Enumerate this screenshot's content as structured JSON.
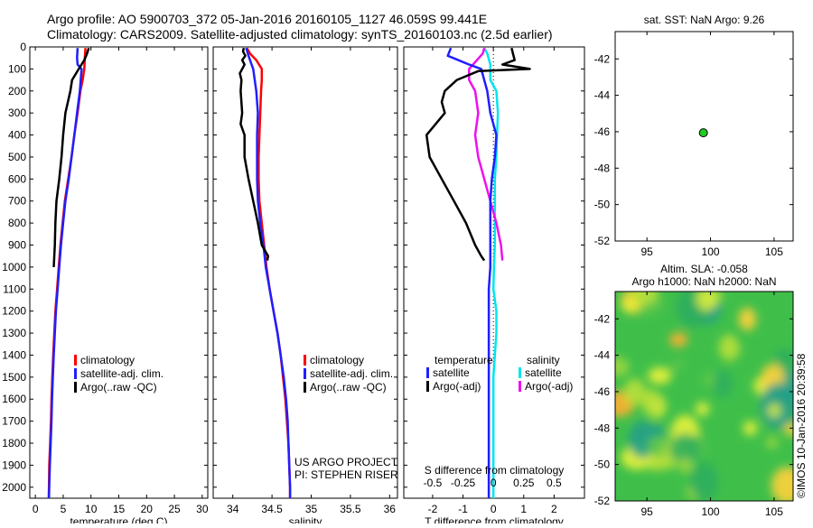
{
  "header": {
    "line1": "Argo profile: AO 5900703_372 05-Jan-2016 20160105_1127 46.059S 99.441E",
    "line2": "Climatology: CARS2009. Satellite-adjusted climatology: synTS_20160103.nc (2.5d earlier)"
  },
  "colors": {
    "climatology": "#ff0000",
    "satellite": "#1f1fff",
    "argo": "#000000",
    "sal_satellite": "#00e5ee",
    "sal_argo": "#ee10ee",
    "dot": "#22cc22"
  },
  "chart_data": [
    {
      "type": "line",
      "id": "temperature",
      "xlabel": "temperature (deg C)",
      "ylabel": "",
      "xlim": [
        -1,
        31
      ],
      "ylim": [
        2050,
        0
      ],
      "xticks": [
        "0",
        "5",
        "10",
        "15",
        "20",
        "25",
        "30"
      ],
      "yticks": [
        "0",
        "100",
        "200",
        "300",
        "400",
        "500",
        "600",
        "700",
        "800",
        "900",
        "1000",
        "1100",
        "1200",
        "1300",
        "1400",
        "1500",
        "1600",
        "1700",
        "1800",
        "1900",
        "2000"
      ],
      "legend": [
        "climatology",
        "satellite-adj. clim.",
        "Argo(..raw -QC)"
      ],
      "series": [
        {
          "name": "climatology",
          "color_key": "climatology",
          "points": [
            [
              9.0,
              5
            ],
            [
              8.9,
              50
            ],
            [
              8.8,
              100
            ],
            [
              8.5,
              150
            ],
            [
              8.1,
              200
            ],
            [
              7.6,
              300
            ],
            [
              7.0,
              400
            ],
            [
              6.5,
              500
            ],
            [
              5.9,
              600
            ],
            [
              5.3,
              700
            ],
            [
              4.9,
              800
            ],
            [
              4.5,
              900
            ],
            [
              4.2,
              1000
            ],
            [
              3.9,
              1100
            ],
            [
              3.6,
              1200
            ],
            [
              3.4,
              1300
            ],
            [
              3.2,
              1400
            ],
            [
              3.05,
              1500
            ],
            [
              2.9,
              1600
            ],
            [
              2.8,
              1700
            ],
            [
              2.65,
              1800
            ],
            [
              2.5,
              1900
            ],
            [
              2.45,
              2000
            ],
            [
              2.4,
              2050
            ]
          ]
        },
        {
          "name": "satellite-adj. clim.",
          "color_key": "satellite",
          "points": [
            [
              7.6,
              5
            ],
            [
              7.5,
              50
            ],
            [
              7.6,
              80
            ],
            [
              8.3,
              100
            ],
            [
              8.0,
              200
            ],
            [
              7.5,
              300
            ],
            [
              7.0,
              400
            ],
            [
              6.5,
              500
            ],
            [
              6.0,
              600
            ],
            [
              5.4,
              700
            ],
            [
              5.0,
              800
            ],
            [
              4.6,
              900
            ],
            [
              4.3,
              1000
            ],
            [
              4.0,
              1100
            ],
            [
              3.7,
              1200
            ],
            [
              3.5,
              1300
            ],
            [
              3.3,
              1400
            ],
            [
              3.15,
              1500
            ],
            [
              3.0,
              1600
            ],
            [
              2.9,
              1700
            ],
            [
              2.75,
              1800
            ],
            [
              2.6,
              1900
            ],
            [
              2.5,
              2000
            ],
            [
              2.45,
              2050
            ]
          ]
        },
        {
          "name": "Argo(..raw -QC)",
          "color_key": "argo",
          "points": [
            [
              9.6,
              5
            ],
            [
              9.3,
              30
            ],
            [
              8.8,
              60
            ],
            [
              7.8,
              100
            ],
            [
              6.6,
              150
            ],
            [
              6.3,
              200
            ],
            [
              5.4,
              300
            ],
            [
              5.0,
              400
            ],
            [
              4.7,
              500
            ],
            [
              4.3,
              600
            ],
            [
              3.8,
              700
            ],
            [
              3.6,
              800
            ],
            [
              3.5,
              900
            ],
            [
              3.3,
              1000
            ]
          ]
        }
      ]
    },
    {
      "type": "line",
      "id": "salinity",
      "xlabel": "salinity",
      "xlim": [
        33.75,
        36.1
      ],
      "ylim": [
        2050,
        0
      ],
      "xticks": [
        "34",
        "34.5",
        "35",
        "35.5",
        "36"
      ],
      "legend": [
        "climatology",
        "satellite-adj. clim.",
        "Argo(..raw -QC)"
      ],
      "annotation": [
        "US ARGO PROJECT",
        "PI: STEPHEN RISER"
      ],
      "series": [
        {
          "name": "climatology",
          "color_key": "climatology",
          "points": [
            [
              34.18,
              5
            ],
            [
              34.22,
              30
            ],
            [
              34.3,
              60
            ],
            [
              34.37,
              100
            ],
            [
              34.37,
              150
            ],
            [
              34.36,
              200
            ],
            [
              34.35,
              300
            ],
            [
              34.34,
              400
            ],
            [
              34.33,
              500
            ],
            [
              34.33,
              600
            ],
            [
              34.34,
              700
            ],
            [
              34.37,
              800
            ],
            [
              34.4,
              900
            ],
            [
              34.43,
              1000
            ],
            [
              34.47,
              1100
            ],
            [
              34.52,
              1200
            ],
            [
              34.57,
              1300
            ],
            [
              34.61,
              1400
            ],
            [
              34.64,
              1500
            ],
            [
              34.67,
              1600
            ],
            [
              34.69,
              1700
            ],
            [
              34.71,
              1800
            ],
            [
              34.72,
              1900
            ],
            [
              34.73,
              2000
            ],
            [
              34.73,
              2050
            ]
          ]
        },
        {
          "name": "satellite-adj. clim.",
          "color_key": "satellite",
          "points": [
            [
              34.17,
              5
            ],
            [
              34.2,
              40
            ],
            [
              34.24,
              80
            ],
            [
              34.26,
              100
            ],
            [
              34.3,
              200
            ],
            [
              34.32,
              300
            ],
            [
              34.31,
              400
            ],
            [
              34.31,
              500
            ],
            [
              34.31,
              600
            ],
            [
              34.32,
              700
            ],
            [
              34.35,
              800
            ],
            [
              34.39,
              900
            ],
            [
              34.42,
              1000
            ],
            [
              34.47,
              1100
            ],
            [
              34.52,
              1200
            ],
            [
              34.57,
              1300
            ],
            [
              34.61,
              1400
            ],
            [
              34.65,
              1500
            ],
            [
              34.68,
              1600
            ],
            [
              34.7,
              1700
            ],
            [
              34.71,
              1800
            ],
            [
              34.72,
              1900
            ],
            [
              34.73,
              2000
            ],
            [
              34.73,
              2050
            ]
          ]
        },
        {
          "name": "Argo(..raw -QC)",
          "color_key": "argo",
          "points": [
            [
              34.14,
              5
            ],
            [
              34.13,
              20
            ],
            [
              34.16,
              40
            ],
            [
              34.12,
              60
            ],
            [
              34.15,
              80
            ],
            [
              34.12,
              100
            ],
            [
              34.09,
              120
            ],
            [
              34.11,
              150
            ],
            [
              34.1,
              200
            ],
            [
              34.12,
              300
            ],
            [
              34.1,
              350
            ],
            [
              34.15,
              400
            ],
            [
              34.15,
              500
            ],
            [
              34.2,
              600
            ],
            [
              34.26,
              700
            ],
            [
              34.32,
              800
            ],
            [
              34.37,
              900
            ],
            [
              34.45,
              950
            ],
            [
              34.44,
              970
            ]
          ]
        }
      ]
    },
    {
      "type": "line",
      "id": "differences",
      "xlabel": "T difference from climatology",
      "xlabel_top": "S difference from climatology",
      "xlim": [
        -2.95,
        3.0
      ],
      "ylim": [
        2050,
        0
      ],
      "xticks": [
        "-2",
        "-1",
        "0",
        "1",
        "2"
      ],
      "sticks": [
        "-0.5",
        "-0.25",
        "0",
        "0.25",
        "0.5"
      ],
      "legend_headers": [
        "temperature",
        "salinity"
      ],
      "legend": [
        "satellite",
        "Argo(-adj)",
        "satellite",
        "Argo(-adj)"
      ],
      "series": [
        {
          "name": "satellite",
          "color_key": "satellite",
          "points": [
            [
              -1.4,
              5
            ],
            [
              -1.5,
              40
            ],
            [
              -0.8,
              80
            ],
            [
              -0.4,
              100
            ],
            [
              -0.2,
              200
            ],
            [
              -0.1,
              300
            ],
            [
              0.1,
              400
            ],
            [
              0.05,
              500
            ],
            [
              -0.05,
              600
            ],
            [
              -0.1,
              700
            ],
            [
              -0.1,
              800
            ],
            [
              -0.1,
              900
            ],
            [
              -0.1,
              1000
            ],
            [
              -0.15,
              1100
            ],
            [
              -0.15,
              1200
            ],
            [
              -0.15,
              1300
            ],
            [
              -0.15,
              1400
            ],
            [
              -0.15,
              1500
            ],
            [
              -0.15,
              1600
            ],
            [
              -0.15,
              1700
            ],
            [
              -0.15,
              1800
            ],
            [
              -0.15,
              1900
            ],
            [
              -0.15,
              2000
            ],
            [
              -0.15,
              2050
            ]
          ]
        },
        {
          "name": "Argo(-adj)",
          "color_key": "argo",
          "points": [
            [
              0.6,
              5
            ],
            [
              0.7,
              60
            ],
            [
              0.3,
              80
            ],
            [
              1.2,
              100
            ],
            [
              -0.5,
              110
            ],
            [
              -1.2,
              150
            ],
            [
              -1.6,
              200
            ],
            [
              -1.7,
              250
            ],
            [
              -1.6,
              300
            ],
            [
              -2.2,
              400
            ],
            [
              -2.1,
              500
            ],
            [
              -1.7,
              600
            ],
            [
              -1.3,
              700
            ],
            [
              -0.9,
              800
            ],
            [
              -0.6,
              900
            ],
            [
              -0.4,
              950
            ],
            [
              -0.3,
              970
            ]
          ]
        },
        {
          "name": "satellite",
          "color_key": "sal_satellite",
          "points": [
            [
              -0.3,
              5
            ],
            [
              -0.2,
              30
            ],
            [
              -0.1,
              80
            ],
            [
              -0.1,
              150
            ],
            [
              0.1,
              200
            ],
            [
              0.15,
              300
            ],
            [
              0.12,
              400
            ],
            [
              0.1,
              500
            ],
            [
              0.05,
              600
            ],
            [
              0.05,
              700
            ],
            [
              0.05,
              800
            ],
            [
              0.05,
              900
            ],
            [
              0.02,
              1000
            ],
            [
              0.0,
              1100
            ],
            [
              0.1,
              1200
            ],
            [
              0.1,
              1300
            ],
            [
              0.05,
              1400
            ],
            [
              0.0,
              1500
            ],
            [
              0.0,
              1600
            ],
            [
              0.0,
              1700
            ],
            [
              0.0,
              1800
            ],
            [
              0.0,
              1900
            ],
            [
              0.0,
              2000
            ],
            [
              0.0,
              2050
            ]
          ]
        },
        {
          "name": "Argo(-adj)",
          "color_key": "sal_argo",
          "points": [
            [
              -0.3,
              5
            ],
            [
              -0.35,
              30
            ],
            [
              -0.8,
              100
            ],
            [
              -0.8,
              150
            ],
            [
              -0.6,
              200
            ],
            [
              -0.5,
              300
            ],
            [
              -0.6,
              400
            ],
            [
              -0.5,
              500
            ],
            [
              -0.3,
              600
            ],
            [
              -0.1,
              700
            ],
            [
              0.1,
              800
            ],
            [
              0.25,
              900
            ],
            [
              0.3,
              970
            ]
          ]
        }
      ]
    },
    {
      "type": "scatter",
      "id": "position",
      "title": "sat. SST: NaN Argo: 9.26",
      "xlim": [
        92.5,
        106.5
      ],
      "ylim": [
        -52,
        -40.5
      ],
      "xticks": [
        "95",
        "100",
        "105"
      ],
      "yticks": [
        "-42",
        "-44",
        "-46",
        "-48",
        "-50",
        "-52"
      ],
      "points": [
        [
          99.441,
          -46.059
        ]
      ]
    },
    {
      "type": "heatmap",
      "id": "altimetry",
      "title_line1": "Altim. SLA: -0.058",
      "title_line2": "Argo h1000: NaN h2000: NaN",
      "xlim": [
        92.5,
        106.5
      ],
      "ylim": [
        -52,
        -40.5
      ],
      "xticks": [
        "95",
        "100",
        "105"
      ],
      "yticks": [
        "-42",
        "-44",
        "-46",
        "-48",
        "-50",
        "-52"
      ],
      "credit": "©IMOS 10-Jan-2016 20:39:58"
    }
  ]
}
